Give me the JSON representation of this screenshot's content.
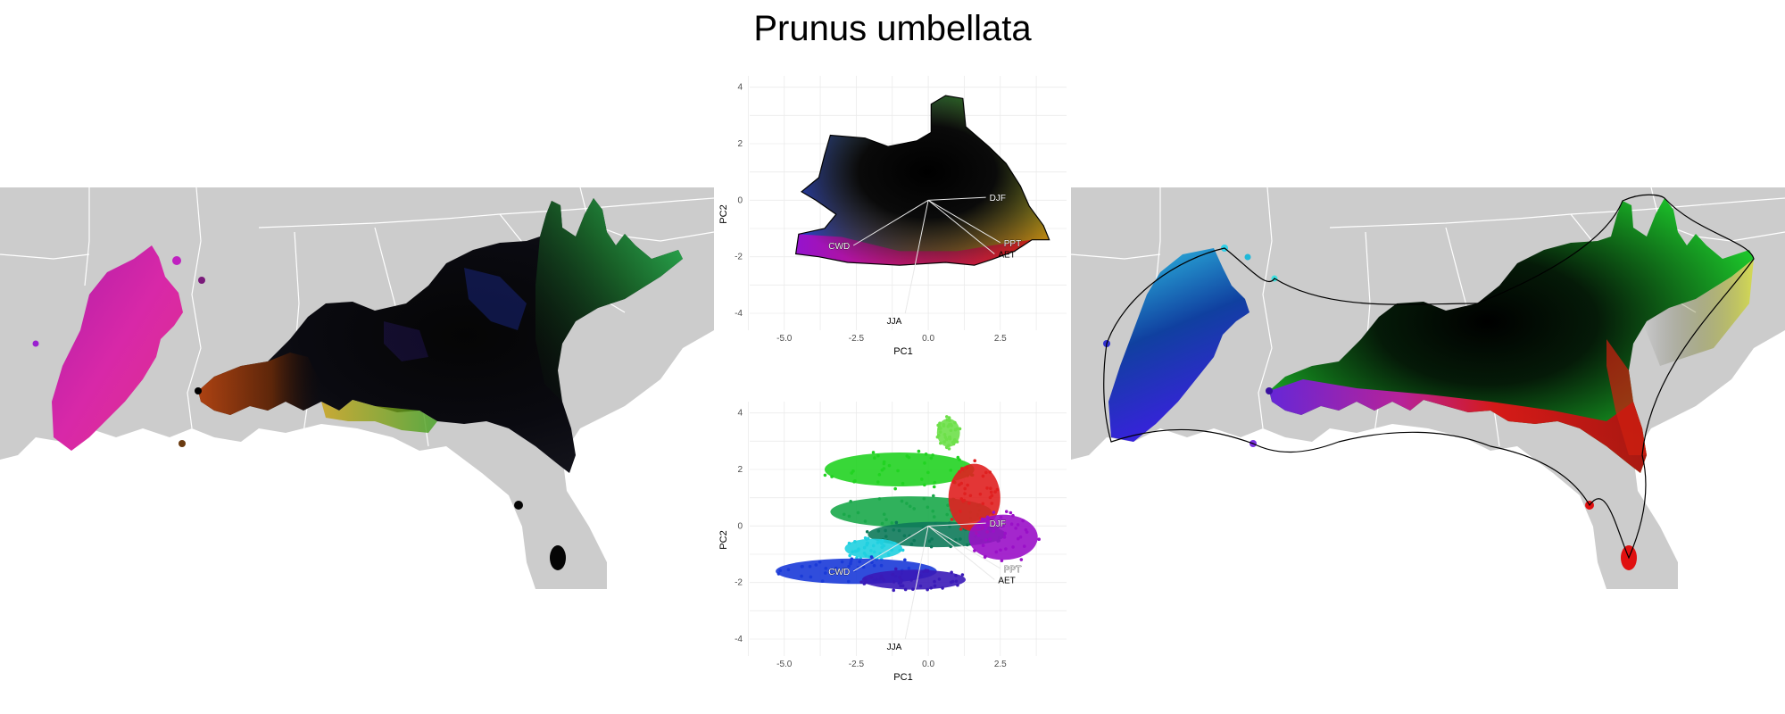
{
  "title": "Prunus umbellata",
  "chart_data": [
    {
      "id": "pca-top",
      "type": "scatter",
      "description_mode": "continuous colour-space hull",
      "xlabel": "PC1",
      "ylabel": "PC2",
      "xlim": [
        -6.2,
        4.8
      ],
      "ylim": [
        -4.6,
        4.4
      ],
      "xticks": [
        -5.0,
        -2.5,
        0.0,
        2.5
      ],
      "yticks": [
        -4,
        -2,
        0,
        2,
        4
      ],
      "xtick_labels": [
        "-5.0",
        "-2.5",
        "0.0",
        "2.5"
      ],
      "ytick_labels": [
        "-4",
        "-2",
        "0",
        "2",
        "4"
      ],
      "grid": true,
      "vectors": [
        {
          "label": "DJF",
          "x": 2.0,
          "y": 0.1
        },
        {
          "label": "PPT",
          "x": 2.5,
          "y": -1.5
        },
        {
          "label": "AET",
          "x": 2.3,
          "y": -1.9
        },
        {
          "label": "CWD",
          "x": -2.6,
          "y": -1.6
        },
        {
          "label": "JJA",
          "x": -0.8,
          "y": -4.0
        }
      ]
    },
    {
      "id": "pca-bottom",
      "type": "scatter",
      "description_mode": "points coloured by geography",
      "xlabel": "PC1",
      "ylabel": "PC2",
      "xlim": [
        -6.2,
        4.8
      ],
      "ylim": [
        -4.6,
        4.4
      ],
      "xticks": [
        -5.0,
        -2.5,
        0.0,
        2.5
      ],
      "yticks": [
        -4,
        -2,
        0,
        2,
        4
      ],
      "xtick_labels": [
        "-5.0",
        "-2.5",
        "0.0",
        "2.5"
      ],
      "ytick_labels": [
        "-4",
        "-2",
        "0",
        "2",
        "4"
      ],
      "grid": true,
      "vectors": [
        {
          "label": "DJF",
          "x": 2.0,
          "y": 0.1
        },
        {
          "label": "PPT",
          "x": 2.5,
          "y": -1.5
        },
        {
          "label": "AET",
          "x": 2.3,
          "y": -1.9
        },
        {
          "label": "CWD",
          "x": -2.6,
          "y": -1.6
        },
        {
          "label": "JJA",
          "x": -0.8,
          "y": -4.0
        }
      ],
      "clusters": [
        {
          "color": "#22d322",
          "cx": -1.0,
          "cy": 2.0,
          "rx": 2.6,
          "ry": 0.6
        },
        {
          "color": "#1aa84a",
          "cx": -0.6,
          "cy": 0.5,
          "rx": 2.8,
          "ry": 0.55
        },
        {
          "color": "#0e7a5a",
          "cx": 0.3,
          "cy": -0.3,
          "rx": 2.4,
          "ry": 0.45
        },
        {
          "color": "#e02020",
          "cx": 1.6,
          "cy": 1.0,
          "rx": 0.9,
          "ry": 1.2
        },
        {
          "color": "#9a10c8",
          "cx": 2.6,
          "cy": -0.4,
          "rx": 1.2,
          "ry": 0.8
        },
        {
          "color": "#20d0e0",
          "cx": -1.9,
          "cy": -0.8,
          "rx": 1.0,
          "ry": 0.35
        },
        {
          "color": "#1a3ad8",
          "cx": -2.5,
          "cy": -1.6,
          "rx": 2.8,
          "ry": 0.45
        },
        {
          "color": "#3a1ab8",
          "cx": -0.5,
          "cy": -1.9,
          "rx": 1.8,
          "ry": 0.35
        },
        {
          "color": "#6ee04a",
          "cx": 0.7,
          "cy": 3.3,
          "rx": 0.4,
          "ry": 0.5
        }
      ]
    }
  ],
  "maps": {
    "land_color": "#cccccc",
    "border_color": "#ffffff",
    "left_desc": "range coloured by climate space",
    "right_desc": "range coloured by geographic position"
  }
}
